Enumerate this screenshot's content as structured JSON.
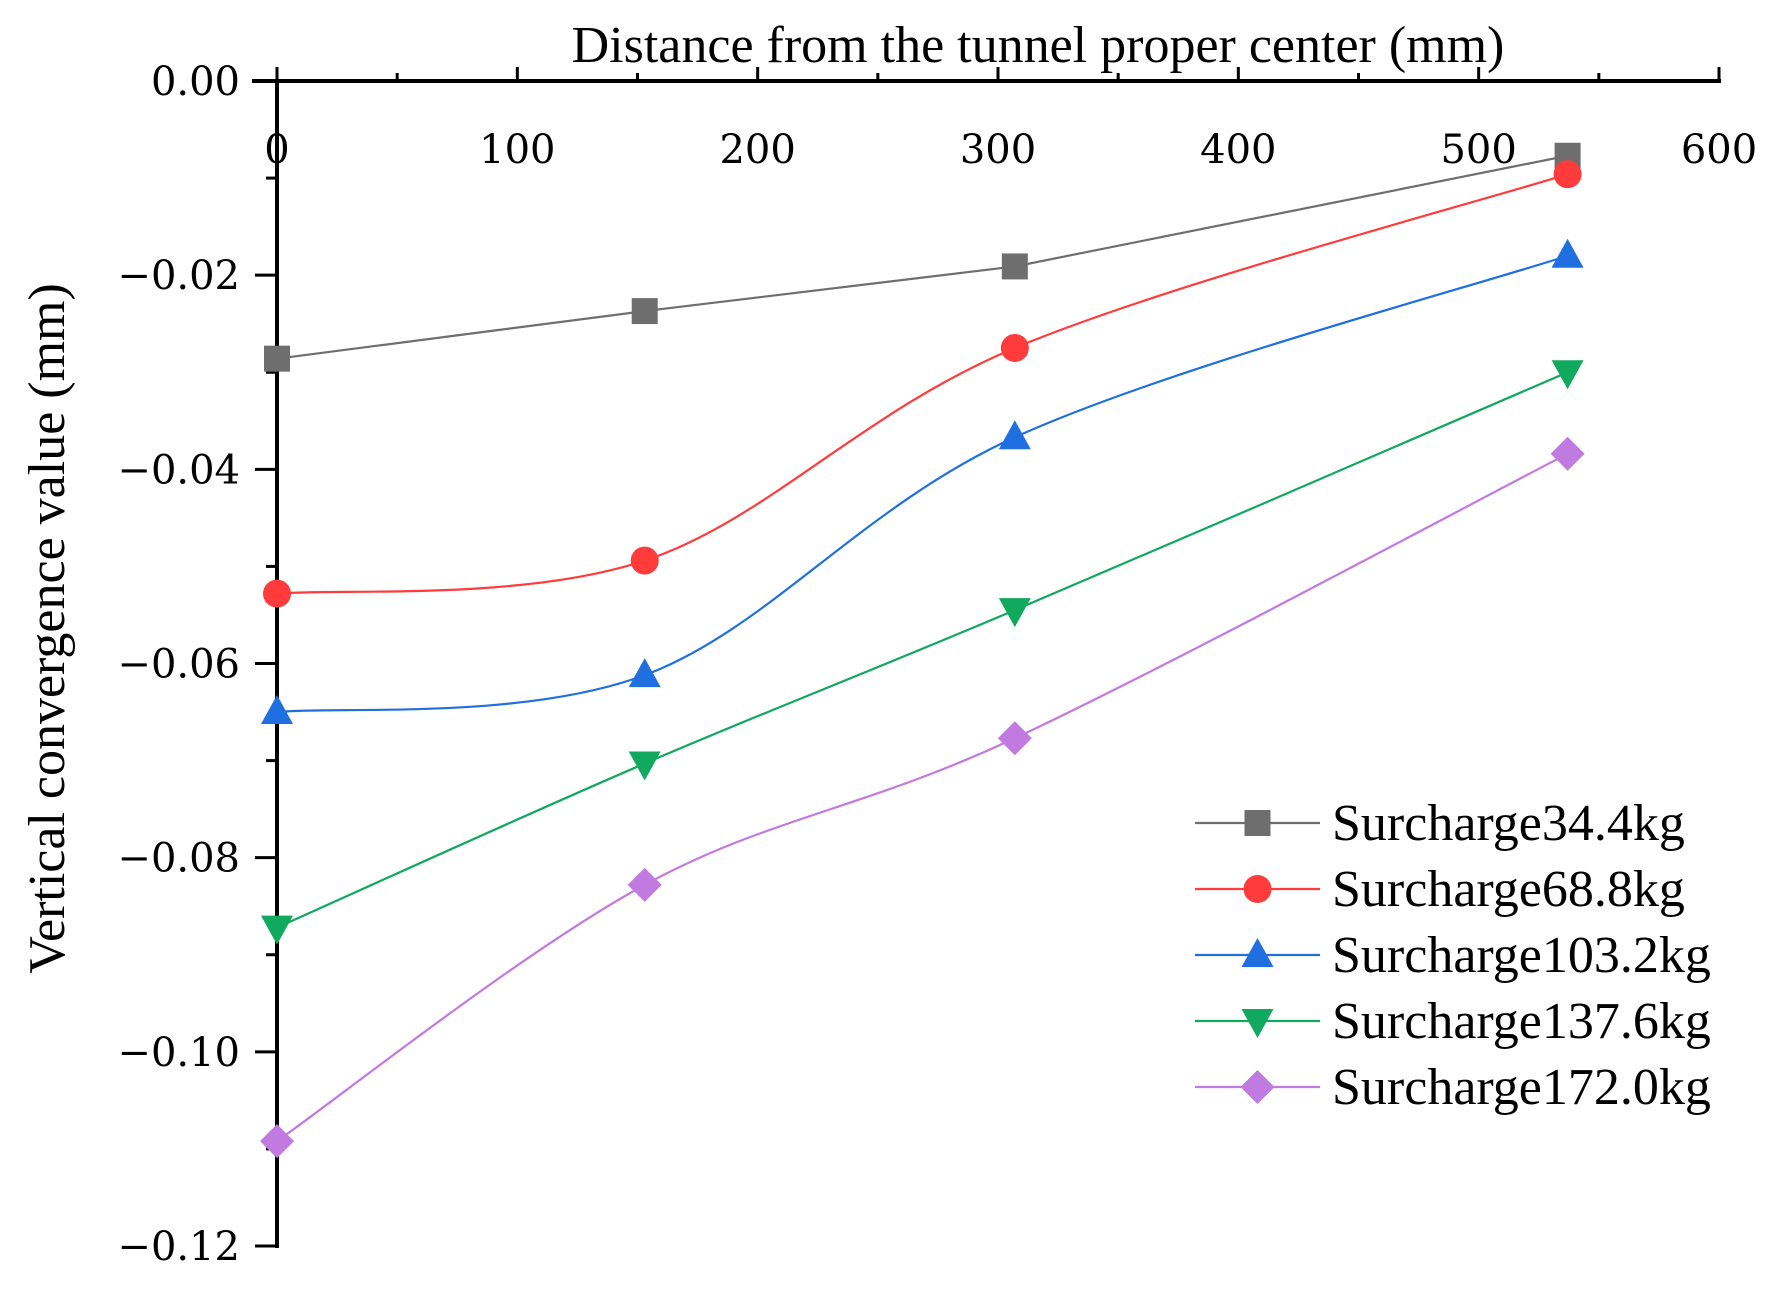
{
  "chart_data": {
    "type": "line",
    "title": "",
    "xlabel": "Distance from the tunnel proper center (mm)",
    "ylabel": "Vertical convergence value (mm)",
    "xlim": [
      0,
      600
    ],
    "ylim": [
      -0.12,
      0.0
    ],
    "x_ticks": [
      0,
      100,
      200,
      300,
      400,
      500,
      600
    ],
    "x_tick_labels": [
      "0",
      "100",
      "200",
      "300",
      "400",
      "500",
      "600"
    ],
    "y_ticks": [
      0.0,
      -0.02,
      -0.04,
      -0.06,
      -0.08,
      -0.1,
      -0.12
    ],
    "y_tick_labels": [
      "0.00",
      "−0.02",
      "−0.04",
      "−0.06",
      "−0.08",
      "−0.10",
      "−0.12"
    ],
    "x_axis_position": "top",
    "grid": false,
    "legend_position": "lower-right",
    "x": [
      0,
      153,
      307,
      537
    ],
    "series": [
      {
        "name": "Surcharge34.4kg",
        "values": [
          -0.0286,
          -0.0237,
          -0.0191,
          -0.0077
        ],
        "color": "#6e6e6e",
        "marker": "square",
        "smooth": false
      },
      {
        "name": "Surcharge68.8kg",
        "values": [
          -0.0528,
          -0.0494,
          -0.0275,
          -0.0096
        ],
        "color": "#ff3b3b",
        "marker": "circle",
        "smooth": true
      },
      {
        "name": "Surcharge103.2kg",
        "values": [
          -0.065,
          -0.0612,
          -0.0367,
          -0.018
        ],
        "color": "#1f6fe0",
        "marker": "triangle-up",
        "smooth": true
      },
      {
        "name": "Surcharge137.6kg",
        "values": [
          -0.0872,
          -0.0703,
          -0.0545,
          -0.03
        ],
        "color": "#10a95d",
        "marker": "triangle-down",
        "smooth": true
      },
      {
        "name": "Surcharge172.0kg",
        "values": [
          -0.1092,
          -0.0828,
          -0.0677,
          -0.0384
        ],
        "color": "#c17ae0",
        "marker": "diamond",
        "smooth": true
      }
    ]
  }
}
